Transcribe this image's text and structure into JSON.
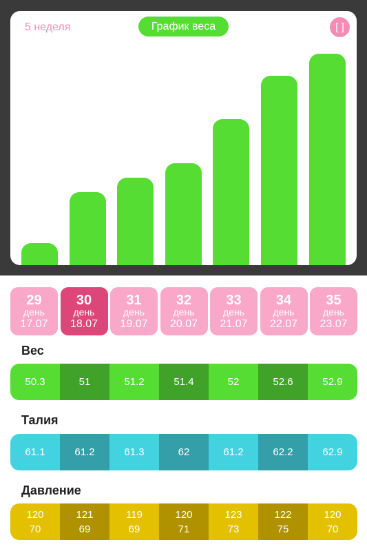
{
  "header": {
    "week_label": "5 неделя",
    "chart_title": "График веса",
    "expand_label": "[ ]"
  },
  "colors": {
    "green": "#55dd33",
    "green_dark": "#40a228",
    "pink": "#f9a8c9",
    "pink_active": "#dd4679",
    "teal": "#43d3e0",
    "teal_dark": "#349ea9",
    "yellow": "#e3c000",
    "yellow_dark": "#b09200"
  },
  "chart_data": {
    "type": "bar",
    "categories": [
      "29",
      "30",
      "31",
      "32",
      "33",
      "34",
      "35"
    ],
    "values": [
      50.3,
      51,
      51.2,
      51.4,
      52,
      52.6,
      52.9
    ],
    "title": "График веса",
    "ylim": [
      50,
      53.2
    ]
  },
  "day_word": "день",
  "days": [
    {
      "num": "29",
      "date": "17.07",
      "active": false
    },
    {
      "num": "30",
      "date": "18.07",
      "active": true
    },
    {
      "num": "31",
      "date": "19.07",
      "active": false
    },
    {
      "num": "32",
      "date": "20.07",
      "active": false
    },
    {
      "num": "33",
      "date": "21.07",
      "active": false
    },
    {
      "num": "34",
      "date": "22.07",
      "active": false
    },
    {
      "num": "35",
      "date": "23.07",
      "active": false
    }
  ],
  "weight": {
    "title": "Вес",
    "values": [
      "50.3",
      "51",
      "51.2",
      "51.4",
      "52",
      "52.6",
      "52.9"
    ]
  },
  "waist": {
    "title": "Талия",
    "values": [
      "61.1",
      "61.2",
      "61.3",
      "62",
      "61.2",
      "62.2",
      "62.9"
    ]
  },
  "pressure": {
    "title": "Давление",
    "values": [
      {
        "top": "120",
        "bottom": "70"
      },
      {
        "top": "121",
        "bottom": "69"
      },
      {
        "top": "119",
        "bottom": "69"
      },
      {
        "top": "120",
        "bottom": "71"
      },
      {
        "top": "123",
        "bottom": "73"
      },
      {
        "top": "122",
        "bottom": "75"
      },
      {
        "top": "120",
        "bottom": "70"
      }
    ]
  }
}
